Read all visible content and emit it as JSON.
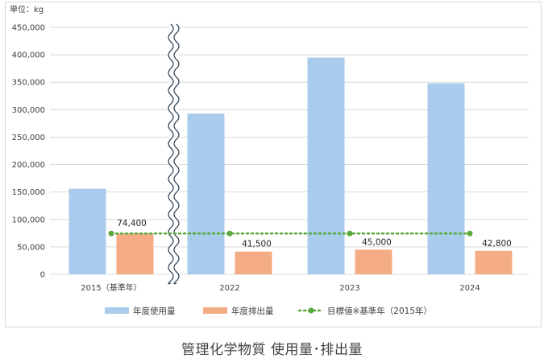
{
  "chart_data": {
    "type": "bar",
    "unit_label": "単位：kg",
    "categories": [
      "2015（基準年）",
      "2022",
      "2023",
      "2024"
    ],
    "series": [
      {
        "name": "年度使用量",
        "values": [
          156000,
          293000,
          395000,
          348000
        ],
        "color": "#a9cbec"
      },
      {
        "name": "年度排出量",
        "values": [
          74400,
          41500,
          45000,
          42800
        ],
        "color": "#f4ac84"
      }
    ],
    "data_labels": [
      "74,400",
      "41,500",
      "45,000",
      "42,800"
    ],
    "target_line": {
      "name": "目標値※基準年（2015年）",
      "value": 74400,
      "color": "#5aa83a",
      "style": "dotted"
    },
    "ylim": [
      0,
      450000
    ],
    "y_ticks": [
      0,
      50000,
      100000,
      150000,
      200000,
      250000,
      300000,
      350000,
      400000,
      450000
    ],
    "y_tick_labels": [
      "0",
      "50,000",
      "100,000",
      "150,000",
      "200,000",
      "250,000",
      "300,000",
      "350,000",
      "400,000",
      "450,000"
    ],
    "grid": true,
    "axis_break": "between-2015-and-2022",
    "legend_position": "bottom"
  },
  "caption": "管理化学物質 使用量･排出量"
}
